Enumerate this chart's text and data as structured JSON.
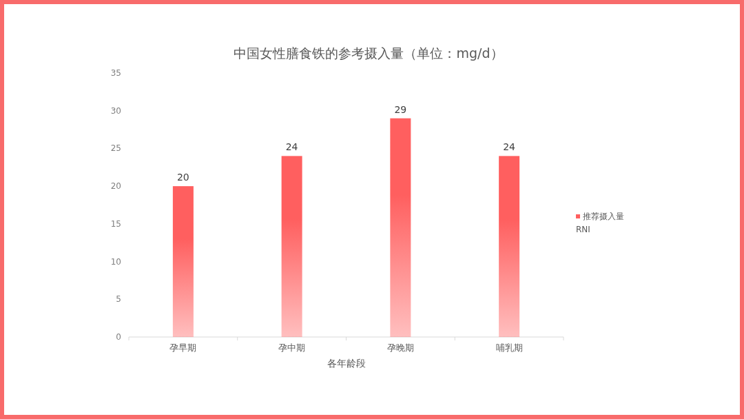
{
  "chart_data": {
    "type": "bar",
    "title": "中国女性膳食铁的参考摄入量（单位：mg/d）",
    "xlabel": "各年龄段",
    "categories": [
      "孕早期",
      "孕中期",
      "孕晚期",
      "哺乳期"
    ],
    "series": [
      {
        "name": "推荐摄入量 RNI",
        "color": "#ff5f5f",
        "values": [
          20,
          24,
          29,
          24
        ]
      }
    ],
    "ylim": [
      0,
      35
    ],
    "yticks": [
      0,
      5,
      10,
      15,
      20,
      25,
      30,
      35
    ],
    "data_labels": true,
    "legend": "right"
  }
}
